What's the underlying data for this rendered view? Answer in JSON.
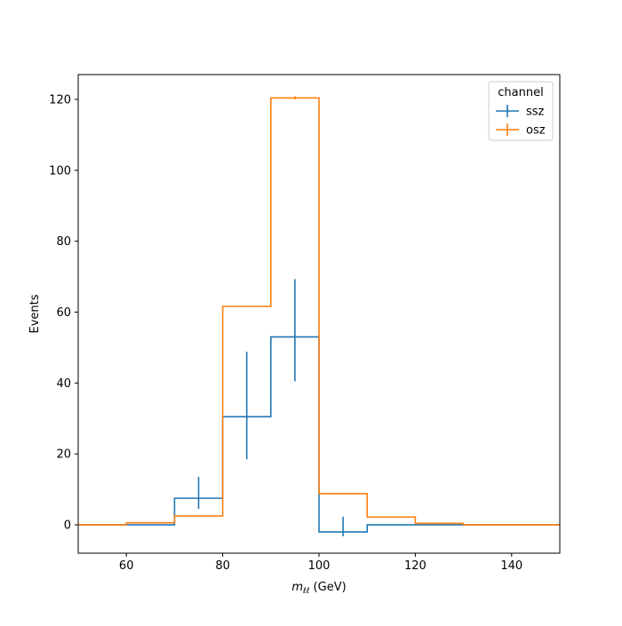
{
  "chart_data": {
    "type": "step-histogram",
    "xlabel_main": "m",
    "xlabel_sub": "ℓℓ",
    "xlabel_unit": " (GeV)",
    "ylabel": "Events",
    "xlim": [
      50,
      150
    ],
    "ylim": [
      -8,
      127
    ],
    "x_ticks": [
      60,
      80,
      100,
      120,
      140
    ],
    "y_ticks": [
      0,
      20,
      40,
      60,
      80,
      100,
      120
    ],
    "bin_edges": [
      50,
      60,
      70,
      80,
      90,
      100,
      110,
      120,
      130,
      150
    ],
    "series": [
      {
        "name": "ssz",
        "color": "#1f77b4",
        "values": [
          0,
          0,
          7.5,
          30.5,
          53,
          -2,
          0,
          0,
          0
        ],
        "errors": [
          {
            "x": 75,
            "low": 4.5,
            "high": 13.5
          },
          {
            "x": 85,
            "low": 18.5,
            "high": 48.8
          },
          {
            "x": 95,
            "low": 40.5,
            "high": 69.3
          },
          {
            "x": 105,
            "low": -3.2,
            "high": 2.3
          }
        ]
      },
      {
        "name": "osz",
        "color": "#ff7f0e",
        "values": [
          0,
          0.6,
          2.5,
          61.6,
          120.4,
          8.8,
          2.2,
          0.4,
          0
        ],
        "errors": [
          {
            "x": 95,
            "low": 120.0,
            "high": 120.9
          }
        ]
      }
    ],
    "legend": {
      "title": "channel",
      "placement": "upper-right"
    }
  }
}
